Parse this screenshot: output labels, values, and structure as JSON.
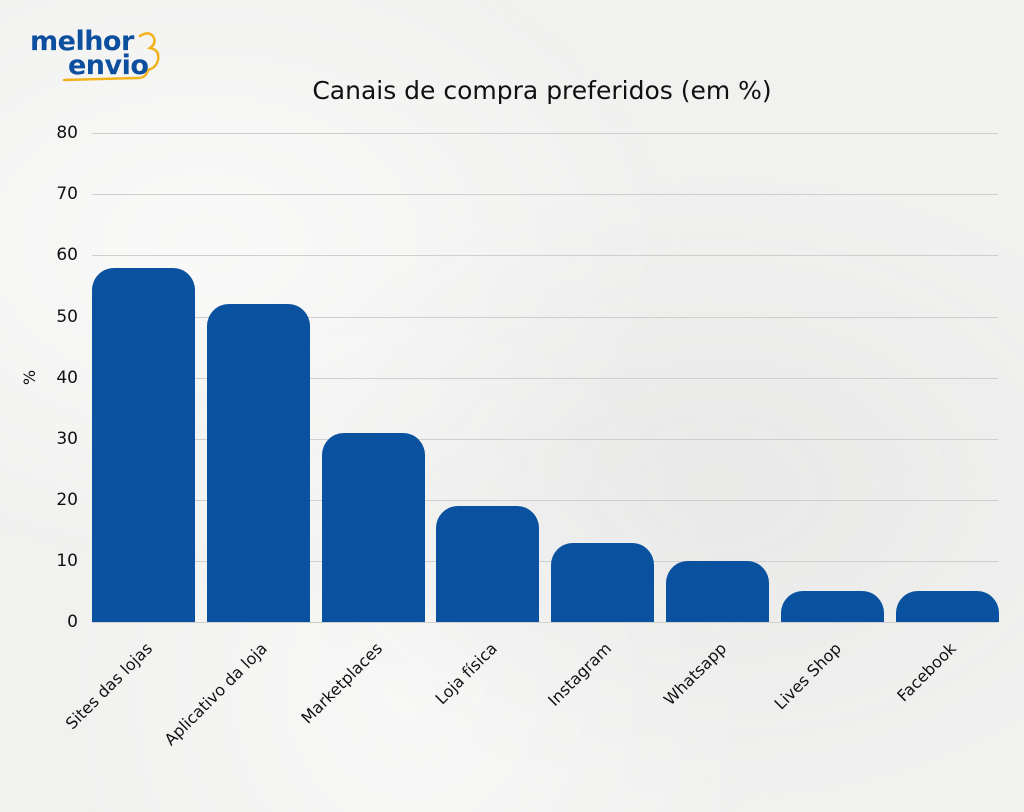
{
  "logo": {
    "line1": "melhor",
    "line2": "envio",
    "brand_color": "#0b4f9e",
    "accent_color": "#f2b21b"
  },
  "chart_data": {
    "type": "bar",
    "title": "Canais de compra preferidos (em %)",
    "xlabel": "",
    "ylabel": "%",
    "ylim": [
      0,
      80
    ],
    "yticks": [
      0,
      10,
      20,
      30,
      40,
      50,
      60,
      70,
      80
    ],
    "grid": true,
    "legend": null,
    "bar_color": "#0a51a0",
    "categories": [
      "Sites das lojas",
      "Aplicativo da loja",
      "Marketplaces",
      "Loja física",
      "Instagram",
      "Whatsapp",
      "Lives Shop",
      "Facebook"
    ],
    "values": [
      58,
      52,
      31,
      19,
      13,
      10,
      5,
      5
    ]
  }
}
